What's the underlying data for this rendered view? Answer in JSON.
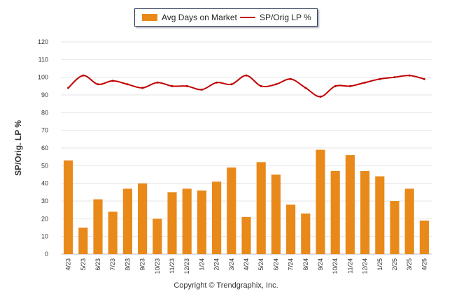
{
  "chart_data": {
    "type": "bar",
    "title": "",
    "xlabel": "",
    "ylabel": "SP/Orig. LP %",
    "ylim": [
      0,
      120
    ],
    "yticks": [
      0,
      10,
      20,
      30,
      40,
      50,
      60,
      70,
      80,
      90,
      100,
      110,
      120
    ],
    "grid": true,
    "legend_position": "top-center",
    "categories": [
      "4/23",
      "5/23",
      "6/23",
      "7/23",
      "8/23",
      "9/23",
      "10/23",
      "11/23",
      "12/23",
      "1/24",
      "2/24",
      "3/24",
      "4/24",
      "5/24",
      "6/24",
      "7/24",
      "8/24",
      "9/24",
      "10/24",
      "11/24",
      "12/24",
      "1/25",
      "2/25",
      "3/25",
      "4/25"
    ],
    "series": [
      {
        "name": "Avg Days on Market",
        "type": "bar",
        "color": "#e8891a",
        "values": [
          53,
          15,
          31,
          24,
          37,
          40,
          20,
          35,
          37,
          36,
          41,
          49,
          21,
          52,
          45,
          28,
          23,
          59,
          47,
          56,
          47,
          44,
          30,
          37,
          19
        ]
      },
      {
        "name": "SP/Orig LP %",
        "type": "line",
        "color": "#c00000",
        "values": [
          94,
          101,
          96,
          98,
          96,
          94,
          97,
          95,
          95,
          93,
          97,
          96,
          101,
          95,
          96,
          99,
          94,
          89,
          95,
          95,
          97,
          99,
          100,
          101,
          99
        ]
      }
    ]
  },
  "footer": {
    "copyright": "Copyright © Trendgraphix, Inc."
  }
}
